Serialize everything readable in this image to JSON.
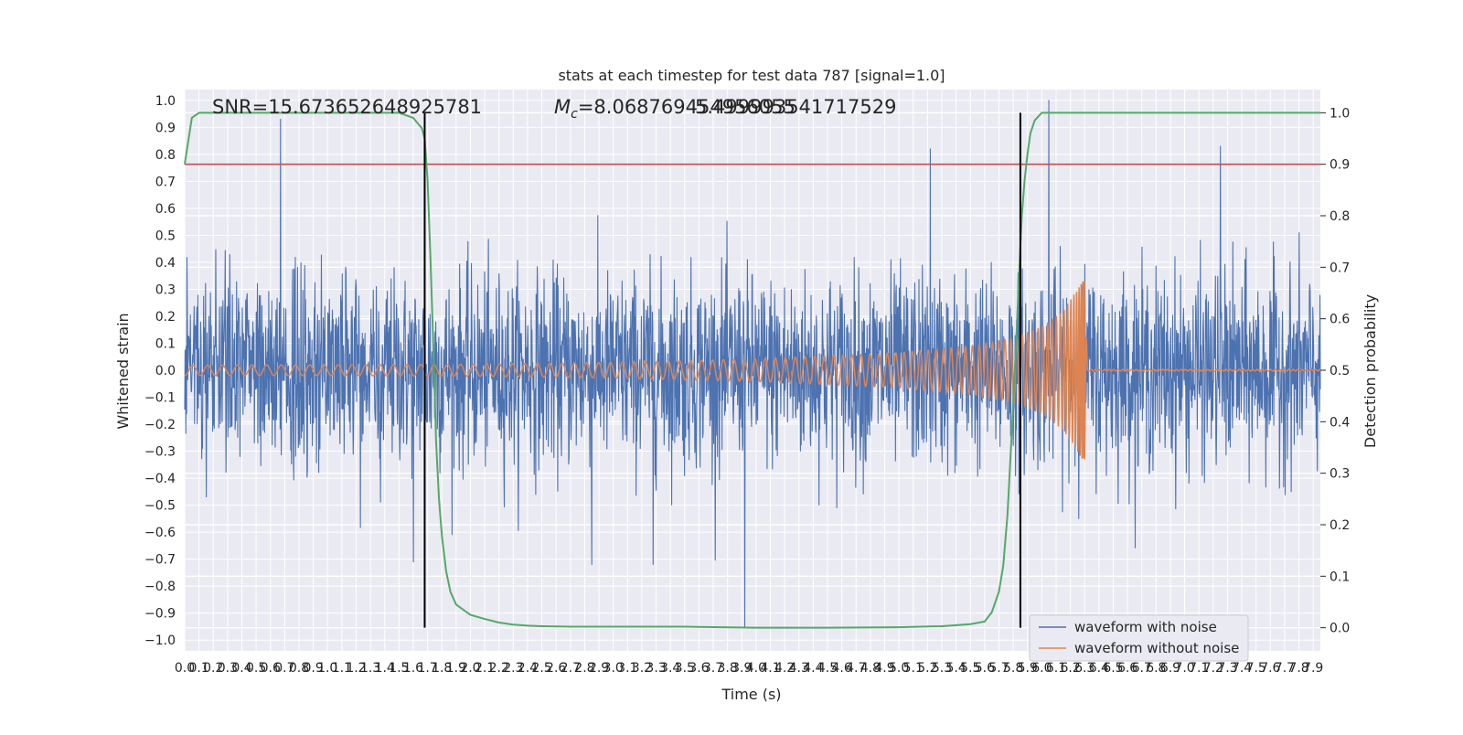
{
  "chart_data": {
    "type": "line",
    "title": "stats at each timestep for test data 787 [signal=1.0]",
    "xlabel": "Time (s)",
    "ylabel": "Whitened strain",
    "y2label": "Detection probability",
    "xlim": [
      0,
      7.95
    ],
    "ylim": [
      -1.04,
      1.04
    ],
    "y2lim": [
      -0.045,
      1.045
    ],
    "x_ticks": [
      0.0,
      0.1,
      0.2,
      0.3,
      0.4,
      0.5,
      0.6,
      0.7,
      0.8,
      0.9,
      1.0,
      1.1,
      1.2,
      1.3,
      1.4,
      1.5,
      1.6,
      1.7,
      1.8,
      1.9,
      2.0,
      2.1,
      2.2,
      2.3,
      2.4,
      2.5,
      2.6,
      2.7,
      2.8,
      2.9,
      3.0,
      3.1,
      3.2,
      3.3,
      3.4,
      3.5,
      3.6,
      3.7,
      3.8,
      3.9,
      4.0,
      4.1,
      4.2,
      4.3,
      4.4,
      4.5,
      4.6,
      4.7,
      4.8,
      4.9,
      5.0,
      5.1,
      5.2,
      5.3,
      5.4,
      5.5,
      5.6,
      5.7,
      5.8,
      5.9,
      6.0,
      6.1,
      6.2,
      6.3,
      6.4,
      6.5,
      6.6,
      6.7,
      6.8,
      6.9,
      7.0,
      7.1,
      7.2,
      7.3,
      7.4,
      7.5,
      7.6,
      7.7,
      7.8,
      7.9
    ],
    "x_tick_labels": [
      "0.0",
      "0.1",
      "0.2",
      "0.3",
      "0.4",
      "0.5",
      "0.6",
      "0.7",
      "0.8",
      "0.9",
      "1.0",
      "1.1",
      "1.2",
      "1.3",
      "1.4",
      "1.5",
      "1.6",
      "1.7",
      "1.8",
      "1.9",
      "2.0",
      "2.1",
      "2.2",
      "2.3",
      "2.4",
      "2.5",
      "2.6",
      "2.7",
      "2.8",
      "2.9",
      "3.0",
      "3.1",
      "3.2",
      "3.3",
      "3.4",
      "3.5",
      "3.6",
      "3.7",
      "3.8",
      "3.9",
      "4.0",
      "4.1",
      "4.2",
      "4.3",
      "4.4",
      "4.5",
      "4.6",
      "4.7",
      "4.8",
      "4.9",
      "5.0",
      "5.1",
      "5.2",
      "5.3",
      "5.4",
      "5.5",
      "5.6",
      "5.7",
      "5.8",
      "5.9",
      "6.0",
      "6.1",
      "6.2",
      "6.3",
      "6.4",
      "6.5",
      "6.6",
      "6.7",
      "6.8",
      "6.9",
      "7.0",
      "7.1",
      "7.2",
      "7.3",
      "7.4",
      "7.5",
      "7.6",
      "7.7",
      "7.8",
      "7.9"
    ],
    "y_ticks": [
      -1.0,
      -0.9,
      -0.8,
      -0.7,
      -0.6,
      -0.5,
      -0.4,
      -0.3,
      -0.2,
      -0.1,
      0.0,
      0.1,
      0.2,
      0.3,
      0.4,
      0.5,
      0.6,
      0.7,
      0.8,
      0.9,
      1.0
    ],
    "y_tick_labels": [
      "−1.0",
      "−0.9",
      "−0.8",
      "−0.7",
      "−0.6",
      "−0.5",
      "−0.4",
      "−0.3",
      "−0.2",
      "−0.1",
      "0.0",
      "0.1",
      "0.2",
      "0.3",
      "0.4",
      "0.5",
      "0.6",
      "0.7",
      "0.8",
      "0.9",
      "1.0"
    ],
    "y2_ticks": [
      0.0,
      0.1,
      0.2,
      0.3,
      0.4,
      0.5,
      0.6,
      0.7,
      0.8,
      0.9,
      1.0
    ],
    "y2_tick_labels": [
      "0.0",
      "0.1",
      "0.2",
      "0.3",
      "0.4",
      "0.5",
      "0.6",
      "0.7",
      "0.8",
      "0.9",
      "1.0"
    ],
    "grid": true,
    "annotations": {
      "snr": "SNR=15.673652648925781",
      "mc_symbol": "M",
      "mc_subscript": "c",
      "mc_text": "=8.068769454956055",
      "overlap_text": "5.499993541717529"
    },
    "threshold": {
      "axis": "y2",
      "value": 0.9,
      "color": "#c44e52"
    },
    "vlines": [
      1.68,
      5.85
    ],
    "series": [
      {
        "name": "waveform with noise",
        "axis": "y",
        "color": "#4c72b0",
        "kind": "noise",
        "sigma": 0.175,
        "spikes": [
          [
            0.67,
            0.93
          ],
          [
            3.92,
            -0.95
          ],
          [
            6.05,
            1.0
          ],
          [
            7.25,
            0.83
          ],
          [
            5.22,
            0.82
          ],
          [
            2.85,
            -0.72
          ],
          [
            1.6,
            -0.71
          ],
          [
            3.28,
            -0.72
          ]
        ]
      },
      {
        "name": "waveform without noise",
        "axis": "y",
        "color": "#dd8452",
        "kind": "chirp",
        "t_merge": 6.3,
        "amplitude": [
          [
            0.0,
            0.019
          ],
          [
            1.0,
            0.02
          ],
          [
            2.0,
            0.022
          ],
          [
            3.0,
            0.029
          ],
          [
            4.0,
            0.042
          ],
          [
            5.0,
            0.065
          ],
          [
            5.5,
            0.09
          ],
          [
            5.8,
            0.12
          ],
          [
            6.0,
            0.16
          ],
          [
            6.15,
            0.22
          ],
          [
            6.25,
            0.3
          ],
          [
            6.3,
            0.34
          ],
          [
            6.32,
            0.0
          ]
        ],
        "ringdown_amplitude": 0.003
      },
      {
        "name": "detection probability",
        "axis": "y2",
        "color": "#55a868",
        "kind": "line",
        "x": [
          0.0,
          0.05,
          0.1,
          0.2,
          0.5,
          1.0,
          1.5,
          1.55,
          1.6,
          1.63,
          1.66,
          1.68,
          1.7,
          1.72,
          1.74,
          1.76,
          1.78,
          1.8,
          1.83,
          1.86,
          1.9,
          1.95,
          2.0,
          2.1,
          2.2,
          2.3,
          2.4,
          2.5,
          2.7,
          3.0,
          3.5,
          4.0,
          4.5,
          5.0,
          5.3,
          5.5,
          5.6,
          5.65,
          5.7,
          5.73,
          5.76,
          5.79,
          5.82,
          5.84,
          5.86,
          5.88,
          5.9,
          5.92,
          5.95,
          6.0,
          6.1,
          6.5,
          7.0,
          7.5,
          7.95
        ],
        "values": [
          0.9,
          0.99,
          1.0,
          1.0,
          1.0,
          1.0,
          1.0,
          0.995,
          0.99,
          0.98,
          0.97,
          0.95,
          0.87,
          0.72,
          0.55,
          0.36,
          0.25,
          0.18,
          0.11,
          0.07,
          0.045,
          0.035,
          0.025,
          0.017,
          0.01,
          0.006,
          0.004,
          0.003,
          0.002,
          0.002,
          0.002,
          0.0,
          0.0,
          0.001,
          0.003,
          0.007,
          0.012,
          0.03,
          0.07,
          0.12,
          0.22,
          0.38,
          0.55,
          0.68,
          0.8,
          0.87,
          0.92,
          0.96,
          0.985,
          1.0,
          1.0,
          1.0,
          1.0,
          1.0,
          1.0
        ]
      }
    ],
    "legend": {
      "position": "lower-right",
      "entries": [
        {
          "label": "waveform with noise",
          "color": "#4c72b0"
        },
        {
          "label": "waveform without noise",
          "color": "#dd8452"
        }
      ]
    }
  }
}
